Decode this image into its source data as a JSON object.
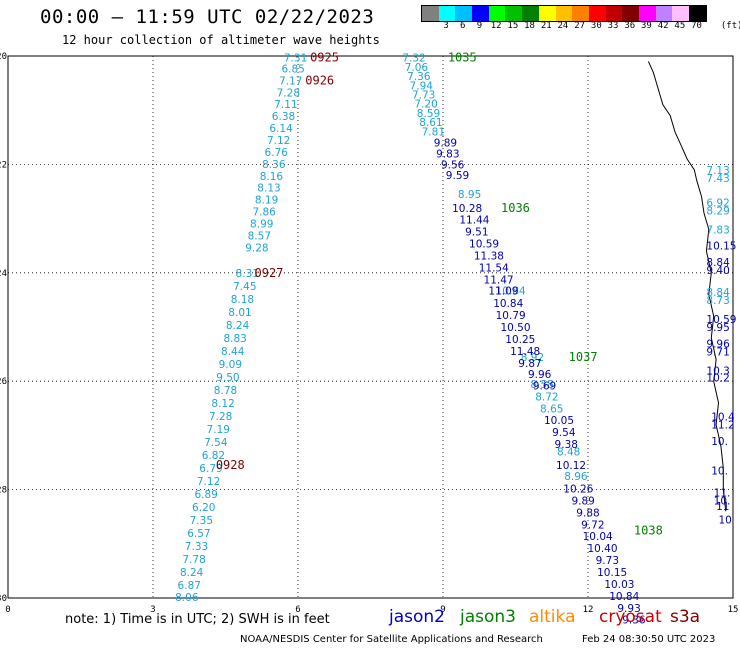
{
  "title": "00:00 – 11:59 UTC 02/22/2023",
  "subtitle": "12 hour collection of altimeter wave heights",
  "legend": {
    "unit_label": "(ft)",
    "labels": [
      "3",
      "6",
      "9",
      "12",
      "15",
      "18",
      "21",
      "24",
      "27",
      "30",
      "33",
      "36",
      "39",
      "42",
      "45",
      "70"
    ],
    "colors": [
      "#808080",
      "#00ffff",
      "#00bfff",
      "#0000ff",
      "#00ff00",
      "#00c000",
      "#008000",
      "#ffff00",
      "#ffc000",
      "#ff8000",
      "#ff0000",
      "#c00000",
      "#800000",
      "#ff00ff",
      "#c080ff",
      "#ffbfff",
      "#000000"
    ]
  },
  "axes": {
    "x_ticks": [
      "0",
      "3",
      "6",
      "9",
      "12",
      "15"
    ],
    "y_ticks": [
      "20",
      "22",
      "24",
      "26",
      "28",
      "30"
    ],
    "x_range": [
      0,
      15
    ],
    "y_range": [
      20,
      30
    ]
  },
  "colors": {
    "jason2": "#0000cc",
    "jason3": "#008000",
    "altika": "#ff8c00",
    "cryosat": "#cc0000",
    "s3a": "#800000",
    "light_track": "#1fa3d8",
    "dark_track": "#0000b0",
    "time_label": "#800000",
    "time_label_green": "#008000"
  },
  "time_labels": [
    {
      "text": "0925",
      "lon": 6.25,
      "lat": 20.03,
      "color": "#800000"
    },
    {
      "text": "0926",
      "lon": 6.15,
      "lat": 20.45,
      "color": "#800000"
    },
    {
      "text": "0927",
      "lon": 5.1,
      "lat": 24.0,
      "color": "#800000"
    },
    {
      "text": "0928",
      "lon": 4.3,
      "lat": 27.55,
      "color": "#800000"
    },
    {
      "text": "1035",
      "lon": 9.1,
      "lat": 20.03,
      "color": "#008000"
    },
    {
      "text": "1036",
      "lon": 10.2,
      "lat": 22.8,
      "color": "#008000"
    },
    {
      "text": "1037",
      "lon": 11.6,
      "lat": 25.55,
      "color": "#008000"
    },
    {
      "text": "1038",
      "lon": 12.95,
      "lat": 28.75,
      "color": "#008000"
    }
  ],
  "track_light": [
    {
      "v": "7.31",
      "lon": 5.95,
      "lat": 20.03
    },
    {
      "v": "6.85",
      "lon": 5.9,
      "lat": 20.23
    },
    {
      "v": "7.17",
      "lon": 5.85,
      "lat": 20.45
    },
    {
      "v": "7.28",
      "lon": 5.8,
      "lat": 20.67
    },
    {
      "v": "7.11",
      "lon": 5.75,
      "lat": 20.89
    },
    {
      "v": "6.38",
      "lon": 5.7,
      "lat": 21.11
    },
    {
      "v": "6.14",
      "lon": 5.65,
      "lat": 21.33
    },
    {
      "v": "7.12",
      "lon": 5.6,
      "lat": 21.55
    },
    {
      "v": "6.76",
      "lon": 5.55,
      "lat": 21.77
    },
    {
      "v": "8.36",
      "lon": 5.5,
      "lat": 21.99
    },
    {
      "v": "8.16",
      "lon": 5.45,
      "lat": 22.21
    },
    {
      "v": "8.13",
      "lon": 5.4,
      "lat": 22.43
    },
    {
      "v": "8.19",
      "lon": 5.35,
      "lat": 22.65
    },
    {
      "v": "7.86",
      "lon": 5.3,
      "lat": 22.87
    },
    {
      "v": "8.99",
      "lon": 5.25,
      "lat": 23.09
    },
    {
      "v": "8.57",
      "lon": 5.2,
      "lat": 23.31
    },
    {
      "v": "9.28",
      "lon": 5.15,
      "lat": 23.53
    },
    {
      "v": "8.31",
      "lon": 4.95,
      "lat": 24.0
    },
    {
      "v": "7.45",
      "lon": 4.9,
      "lat": 24.24
    },
    {
      "v": "8.18",
      "lon": 4.85,
      "lat": 24.48
    },
    {
      "v": "8.01",
      "lon": 4.8,
      "lat": 24.72
    },
    {
      "v": "8.24",
      "lon": 4.75,
      "lat": 24.96
    },
    {
      "v": "8.83",
      "lon": 4.7,
      "lat": 25.2
    },
    {
      "v": "8.44",
      "lon": 4.65,
      "lat": 25.44
    },
    {
      "v": "9.09",
      "lon": 4.6,
      "lat": 25.68
    },
    {
      "v": "9.50",
      "lon": 4.55,
      "lat": 25.92
    },
    {
      "v": "8.78",
      "lon": 4.5,
      "lat": 26.16
    },
    {
      "v": "8.12",
      "lon": 4.45,
      "lat": 26.4
    },
    {
      "v": "7.28",
      "lon": 4.4,
      "lat": 26.64
    },
    {
      "v": "7.19",
      "lon": 4.35,
      "lat": 26.88
    },
    {
      "v": "7.54",
      "lon": 4.3,
      "lat": 27.12
    },
    {
      "v": "6.82",
      "lon": 4.25,
      "lat": 27.36
    },
    {
      "v": "6.79",
      "lon": 4.2,
      "lat": 27.6
    },
    {
      "v": "7.12",
      "lon": 4.15,
      "lat": 27.84
    },
    {
      "v": "6.89",
      "lon": 4.1,
      "lat": 28.08
    },
    {
      "v": "6.20",
      "lon": 4.05,
      "lat": 28.32
    },
    {
      "v": "7.35",
      "lon": 4.0,
      "lat": 28.56
    },
    {
      "v": "6.57",
      "lon": 3.95,
      "lat": 28.8
    },
    {
      "v": "7.33",
      "lon": 3.9,
      "lat": 29.04
    },
    {
      "v": "7.78",
      "lon": 3.85,
      "lat": 29.28
    },
    {
      "v": "8.24",
      "lon": 3.8,
      "lat": 29.52
    },
    {
      "v": "6.87",
      "lon": 3.75,
      "lat": 29.76
    },
    {
      "v": "8.06",
      "lon": 3.7,
      "lat": 29.98
    }
  ],
  "track_mid": [
    {
      "v": "7.32",
      "lon": 8.4,
      "lat": 20.03
    },
    {
      "v": "7.06",
      "lon": 8.45,
      "lat": 20.2
    },
    {
      "v": "7.36",
      "lon": 8.5,
      "lat": 20.37
    },
    {
      "v": "7.94",
      "lon": 8.55,
      "lat": 20.54
    },
    {
      "v": "7.73",
      "lon": 8.6,
      "lat": 20.71
    },
    {
      "v": "7.20",
      "lon": 8.65,
      "lat": 20.88
    },
    {
      "v": "8.59",
      "lon": 8.7,
      "lat": 21.05
    },
    {
      "v": "8.61",
      "lon": 8.75,
      "lat": 21.22
    },
    {
      "v": "7.81",
      "lon": 8.8,
      "lat": 21.39
    },
    {
      "v": "8.95",
      "lon": 9.55,
      "lat": 22.55
    },
    {
      "v": "10.84",
      "lon": 10.4,
      "lat": 24.33
    },
    {
      "v": "8.92",
      "lon": 10.85,
      "lat": 25.55
    },
    {
      "v": "8.58",
      "lon": 11.05,
      "lat": 26.05
    },
    {
      "v": "8.72",
      "lon": 11.15,
      "lat": 26.28
    },
    {
      "v": "8.65",
      "lon": 11.25,
      "lat": 26.5
    },
    {
      "v": "8.48",
      "lon": 11.6,
      "lat": 27.3
    },
    {
      "v": "8.96",
      "lon": 11.75,
      "lat": 27.75
    }
  ],
  "track_dark": [
    {
      "v": "9.89",
      "lon": 9.05,
      "lat": 21.6
    },
    {
      "v": "9.83",
      "lon": 9.1,
      "lat": 21.8
    },
    {
      "v": "9.56",
      "lon": 9.2,
      "lat": 22.0
    },
    {
      "v": "9.59",
      "lon": 9.3,
      "lat": 22.2
    },
    {
      "v": "10.28",
      "lon": 9.5,
      "lat": 22.8
    },
    {
      "v": "11.44",
      "lon": 9.65,
      "lat": 23.02
    },
    {
      "v": "9.51",
      "lon": 9.7,
      "lat": 23.24
    },
    {
      "v": "10.59",
      "lon": 9.85,
      "lat": 23.46
    },
    {
      "v": "11.38",
      "lon": 9.95,
      "lat": 23.68
    },
    {
      "v": "11.54",
      "lon": 10.05,
      "lat": 23.9
    },
    {
      "v": "11.47",
      "lon": 10.15,
      "lat": 24.12
    },
    {
      "v": "11.09",
      "lon": 10.25,
      "lat": 24.33
    },
    {
      "v": "10.84",
      "lon": 10.35,
      "lat": 24.56
    },
    {
      "v": "10.79",
      "lon": 10.4,
      "lat": 24.78
    },
    {
      "v": "10.50",
      "lon": 10.5,
      "lat": 25.0
    },
    {
      "v": "10.25",
      "lon": 10.6,
      "lat": 25.22
    },
    {
      "v": "11.48",
      "lon": 10.7,
      "lat": 25.44
    },
    {
      "v": "9.87",
      "lon": 10.8,
      "lat": 25.66
    },
    {
      "v": "9.96",
      "lon": 11.0,
      "lat": 25.87
    },
    {
      "v": "9.69",
      "lon": 11.1,
      "lat": 26.08
    },
    {
      "v": "10.05",
      "lon": 11.4,
      "lat": 26.72
    },
    {
      "v": "9.54",
      "lon": 11.5,
      "lat": 26.94
    },
    {
      "v": "9.38",
      "lon": 11.55,
      "lat": 27.16
    },
    {
      "v": "10.12",
      "lon": 11.65,
      "lat": 27.55
    },
    {
      "v": "10.26",
      "lon": 11.8,
      "lat": 27.98
    },
    {
      "v": "9.89",
      "lon": 11.9,
      "lat": 28.2
    },
    {
      "v": "9.88",
      "lon": 12.0,
      "lat": 28.42
    },
    {
      "v": "9.72",
      "lon": 12.1,
      "lat": 28.64
    },
    {
      "v": "10.04",
      "lon": 12.2,
      "lat": 28.86
    },
    {
      "v": "10.40",
      "lon": 12.3,
      "lat": 29.08
    },
    {
      "v": "9.73",
      "lon": 12.4,
      "lat": 29.3
    },
    {
      "v": "10.15",
      "lon": 12.5,
      "lat": 29.52
    },
    {
      "v": "10.03",
      "lon": 12.65,
      "lat": 29.74
    },
    {
      "v": "10.84",
      "lon": 12.75,
      "lat": 29.96
    },
    {
      "v": "9.93",
      "lon": 12.85,
      "lat": 30.18
    },
    {
      "v": "9.36",
      "lon": 12.95,
      "lat": 30.4
    }
  ],
  "track_edge": [
    {
      "v": "7.13",
      "lon": 14.45,
      "lat": 22.1,
      "c": "light"
    },
    {
      "v": "7.43",
      "lon": 14.45,
      "lat": 22.25,
      "c": "light"
    },
    {
      "v": "6.92",
      "lon": 14.45,
      "lat": 22.7,
      "c": "light"
    },
    {
      "v": "8.29",
      "lon": 14.45,
      "lat": 22.85,
      "c": "light"
    },
    {
      "v": "7.83",
      "lon": 14.45,
      "lat": 23.2,
      "c": "light"
    },
    {
      "v": "10.15",
      "lon": 14.45,
      "lat": 23.5,
      "c": "dark"
    },
    {
      "v": "8.84",
      "lon": 14.45,
      "lat": 23.8,
      "c": "dark"
    },
    {
      "v": "9.40",
      "lon": 14.45,
      "lat": 23.95,
      "c": "dark"
    },
    {
      "v": "8.84",
      "lon": 14.45,
      "lat": 24.35,
      "c": "light"
    },
    {
      "v": "8.73",
      "lon": 14.45,
      "lat": 24.5,
      "c": "light"
    },
    {
      "v": "10.59",
      "lon": 14.45,
      "lat": 24.85,
      "c": "dark"
    },
    {
      "v": "9.95",
      "lon": 14.45,
      "lat": 25.0,
      "c": "dark"
    },
    {
      "v": "9.96",
      "lon": 14.45,
      "lat": 25.3,
      "c": "dark"
    },
    {
      "v": "9.71",
      "lon": 14.45,
      "lat": 25.45,
      "c": "dark"
    },
    {
      "v": "10.3",
      "lon": 14.45,
      "lat": 25.8,
      "c": "dark"
    },
    {
      "v": "10.2",
      "lon": 14.45,
      "lat": 25.93,
      "c": "dark"
    },
    {
      "v": "10.4",
      "lon": 14.55,
      "lat": 26.65,
      "c": "dark"
    },
    {
      "v": "11.2",
      "lon": 14.55,
      "lat": 26.8,
      "c": "dark"
    },
    {
      "v": "10.",
      "lon": 14.55,
      "lat": 27.1,
      "c": "dark"
    },
    {
      "v": "10.",
      "lon": 14.55,
      "lat": 27.65,
      "c": "dark"
    },
    {
      "v": "11.",
      "lon": 14.6,
      "lat": 28.05,
      "c": "dark"
    },
    {
      "v": "10.",
      "lon": 14.6,
      "lat": 28.2,
      "c": "dark"
    },
    {
      "v": "11",
      "lon": 14.65,
      "lat": 28.3,
      "c": "dark"
    },
    {
      "v": "10",
      "lon": 14.7,
      "lat": 28.55,
      "c": "dark"
    }
  ],
  "note": "note: 1) Time is in UTC; 2) SWH is in feet",
  "satellites": [
    "jason2",
    "jason3",
    "altika",
    "cryosat",
    "s3a"
  ],
  "footer": "NOAA/NESDIS Center for Satellite Applications and Research",
  "footer_date": "Feb 24 08:30:50 UTC 2023"
}
